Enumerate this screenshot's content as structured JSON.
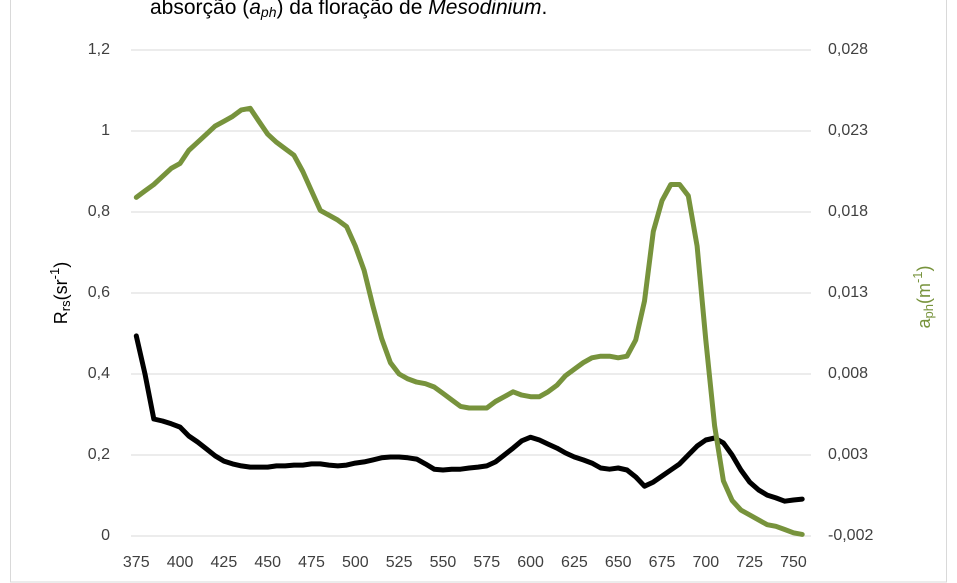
{
  "chart_data": {
    "type": "line",
    "title": [
      "absorção (",
      "a",
      "ph",
      ") da floração de ",
      "Mesodinium",
      "."
    ],
    "y_label": [
      "R",
      "rs",
      "(sr",
      "-1",
      ")"
    ],
    "y2_label": [
      "a",
      "ph",
      "(m",
      "-1",
      ")"
    ],
    "x": [
      375,
      380,
      385,
      390,
      395,
      400,
      405,
      410,
      415,
      420,
      425,
      430,
      435,
      440,
      445,
      450,
      455,
      460,
      465,
      470,
      475,
      480,
      485,
      490,
      495,
      500,
      505,
      510,
      515,
      520,
      525,
      530,
      535,
      540,
      545,
      550,
      555,
      560,
      565,
      570,
      575,
      580,
      585,
      590,
      595,
      600,
      605,
      610,
      615,
      620,
      625,
      630,
      635,
      640,
      645,
      650,
      655,
      660,
      665,
      670,
      675,
      680,
      685,
      690,
      695,
      700,
      705,
      710,
      715,
      720,
      725,
      730,
      735,
      740,
      745,
      750,
      755
    ],
    "xlim": [
      372,
      760
    ],
    "xticks": [
      375,
      400,
      425,
      450,
      475,
      500,
      525,
      550,
      575,
      600,
      625,
      650,
      675,
      700,
      725,
      750
    ],
    "ylim": [
      0,
      1.2
    ],
    "yticks": [
      0,
      {
        "value": 0.2,
        "label": "0,2"
      },
      {
        "value": 0.4,
        "label": "0,4"
      },
      {
        "value": 0.6,
        "label": "0,6"
      },
      {
        "value": 0.8,
        "label": "0,8"
      },
      1,
      {
        "value": 1.2,
        "label": "1,2"
      }
    ],
    "y2lim": [
      -0.002,
      0.028
    ],
    "y2ticks": [
      {
        "value": -0.002,
        "label": "-0,002"
      },
      {
        "value": 0.003,
        "label": "0,003"
      },
      {
        "value": 0.008,
        "label": "0,008"
      },
      {
        "value": 0.013,
        "label": "0,013"
      },
      {
        "value": 0.018,
        "label": "0,018"
      },
      {
        "value": 0.023,
        "label": "0,023"
      },
      {
        "value": 0.028,
        "label": "0,028"
      }
    ],
    "grid": true,
    "series": [
      {
        "color": "#000000",
        "axis": "y",
        "values": [
          0.494,
          0.4,
          0.289,
          0.284,
          0.277,
          0.269,
          0.247,
          0.232,
          0.215,
          0.198,
          0.185,
          0.178,
          0.173,
          0.17,
          0.17,
          0.17,
          0.173,
          0.173,
          0.175,
          0.175,
          0.178,
          0.178,
          0.175,
          0.173,
          0.175,
          0.18,
          0.183,
          0.188,
          0.193,
          0.195,
          0.195,
          0.193,
          0.19,
          0.178,
          0.165,
          0.163,
          0.165,
          0.165,
          0.168,
          0.17,
          0.173,
          0.183,
          0.2,
          0.217,
          0.235,
          0.244,
          0.237,
          0.227,
          0.217,
          0.205,
          0.195,
          0.188,
          0.18,
          0.168,
          0.165,
          0.168,
          0.163,
          0.146,
          0.123,
          0.133,
          0.148,
          0.163,
          0.178,
          0.2,
          0.222,
          0.237,
          0.242,
          0.23,
          0.2,
          0.163,
          0.133,
          0.114,
          0.101,
          0.094,
          0.086,
          0.089,
          0.091
        ]
      },
      {
        "color": "#77933c",
        "axis": "y2",
        "values": [
          0.0189,
          0.0193,
          0.0197,
          0.0202,
          0.0207,
          0.021,
          0.0218,
          0.0223,
          0.0228,
          0.0233,
          0.0236,
          0.0239,
          0.0243,
          0.0244,
          0.0236,
          0.0228,
          0.0223,
          0.0219,
          0.0215,
          0.0205,
          0.0193,
          0.0181,
          0.0178,
          0.0175,
          0.0171,
          0.0159,
          0.0144,
          0.0122,
          0.0102,
          0.0087,
          0.008,
          0.0077,
          0.0075,
          0.0074,
          0.0072,
          0.0068,
          0.0064,
          0.006,
          0.0059,
          0.0059,
          0.0059,
          0.0063,
          0.0066,
          0.0069,
          0.0067,
          0.0066,
          0.0066,
          0.0069,
          0.0073,
          0.0079,
          0.0083,
          0.0087,
          0.009,
          0.0091,
          0.0091,
          0.009,
          0.0091,
          0.0101,
          0.0125,
          0.0168,
          0.0187,
          0.0197,
          0.0197,
          0.019,
          0.0159,
          0.0101,
          0.0048,
          0.0014,
          0.0002,
          -0.0004,
          -0.0007,
          -0.001,
          -0.0013,
          -0.0014,
          -0.0016,
          -0.0018,
          -0.0019
        ]
      }
    ]
  }
}
